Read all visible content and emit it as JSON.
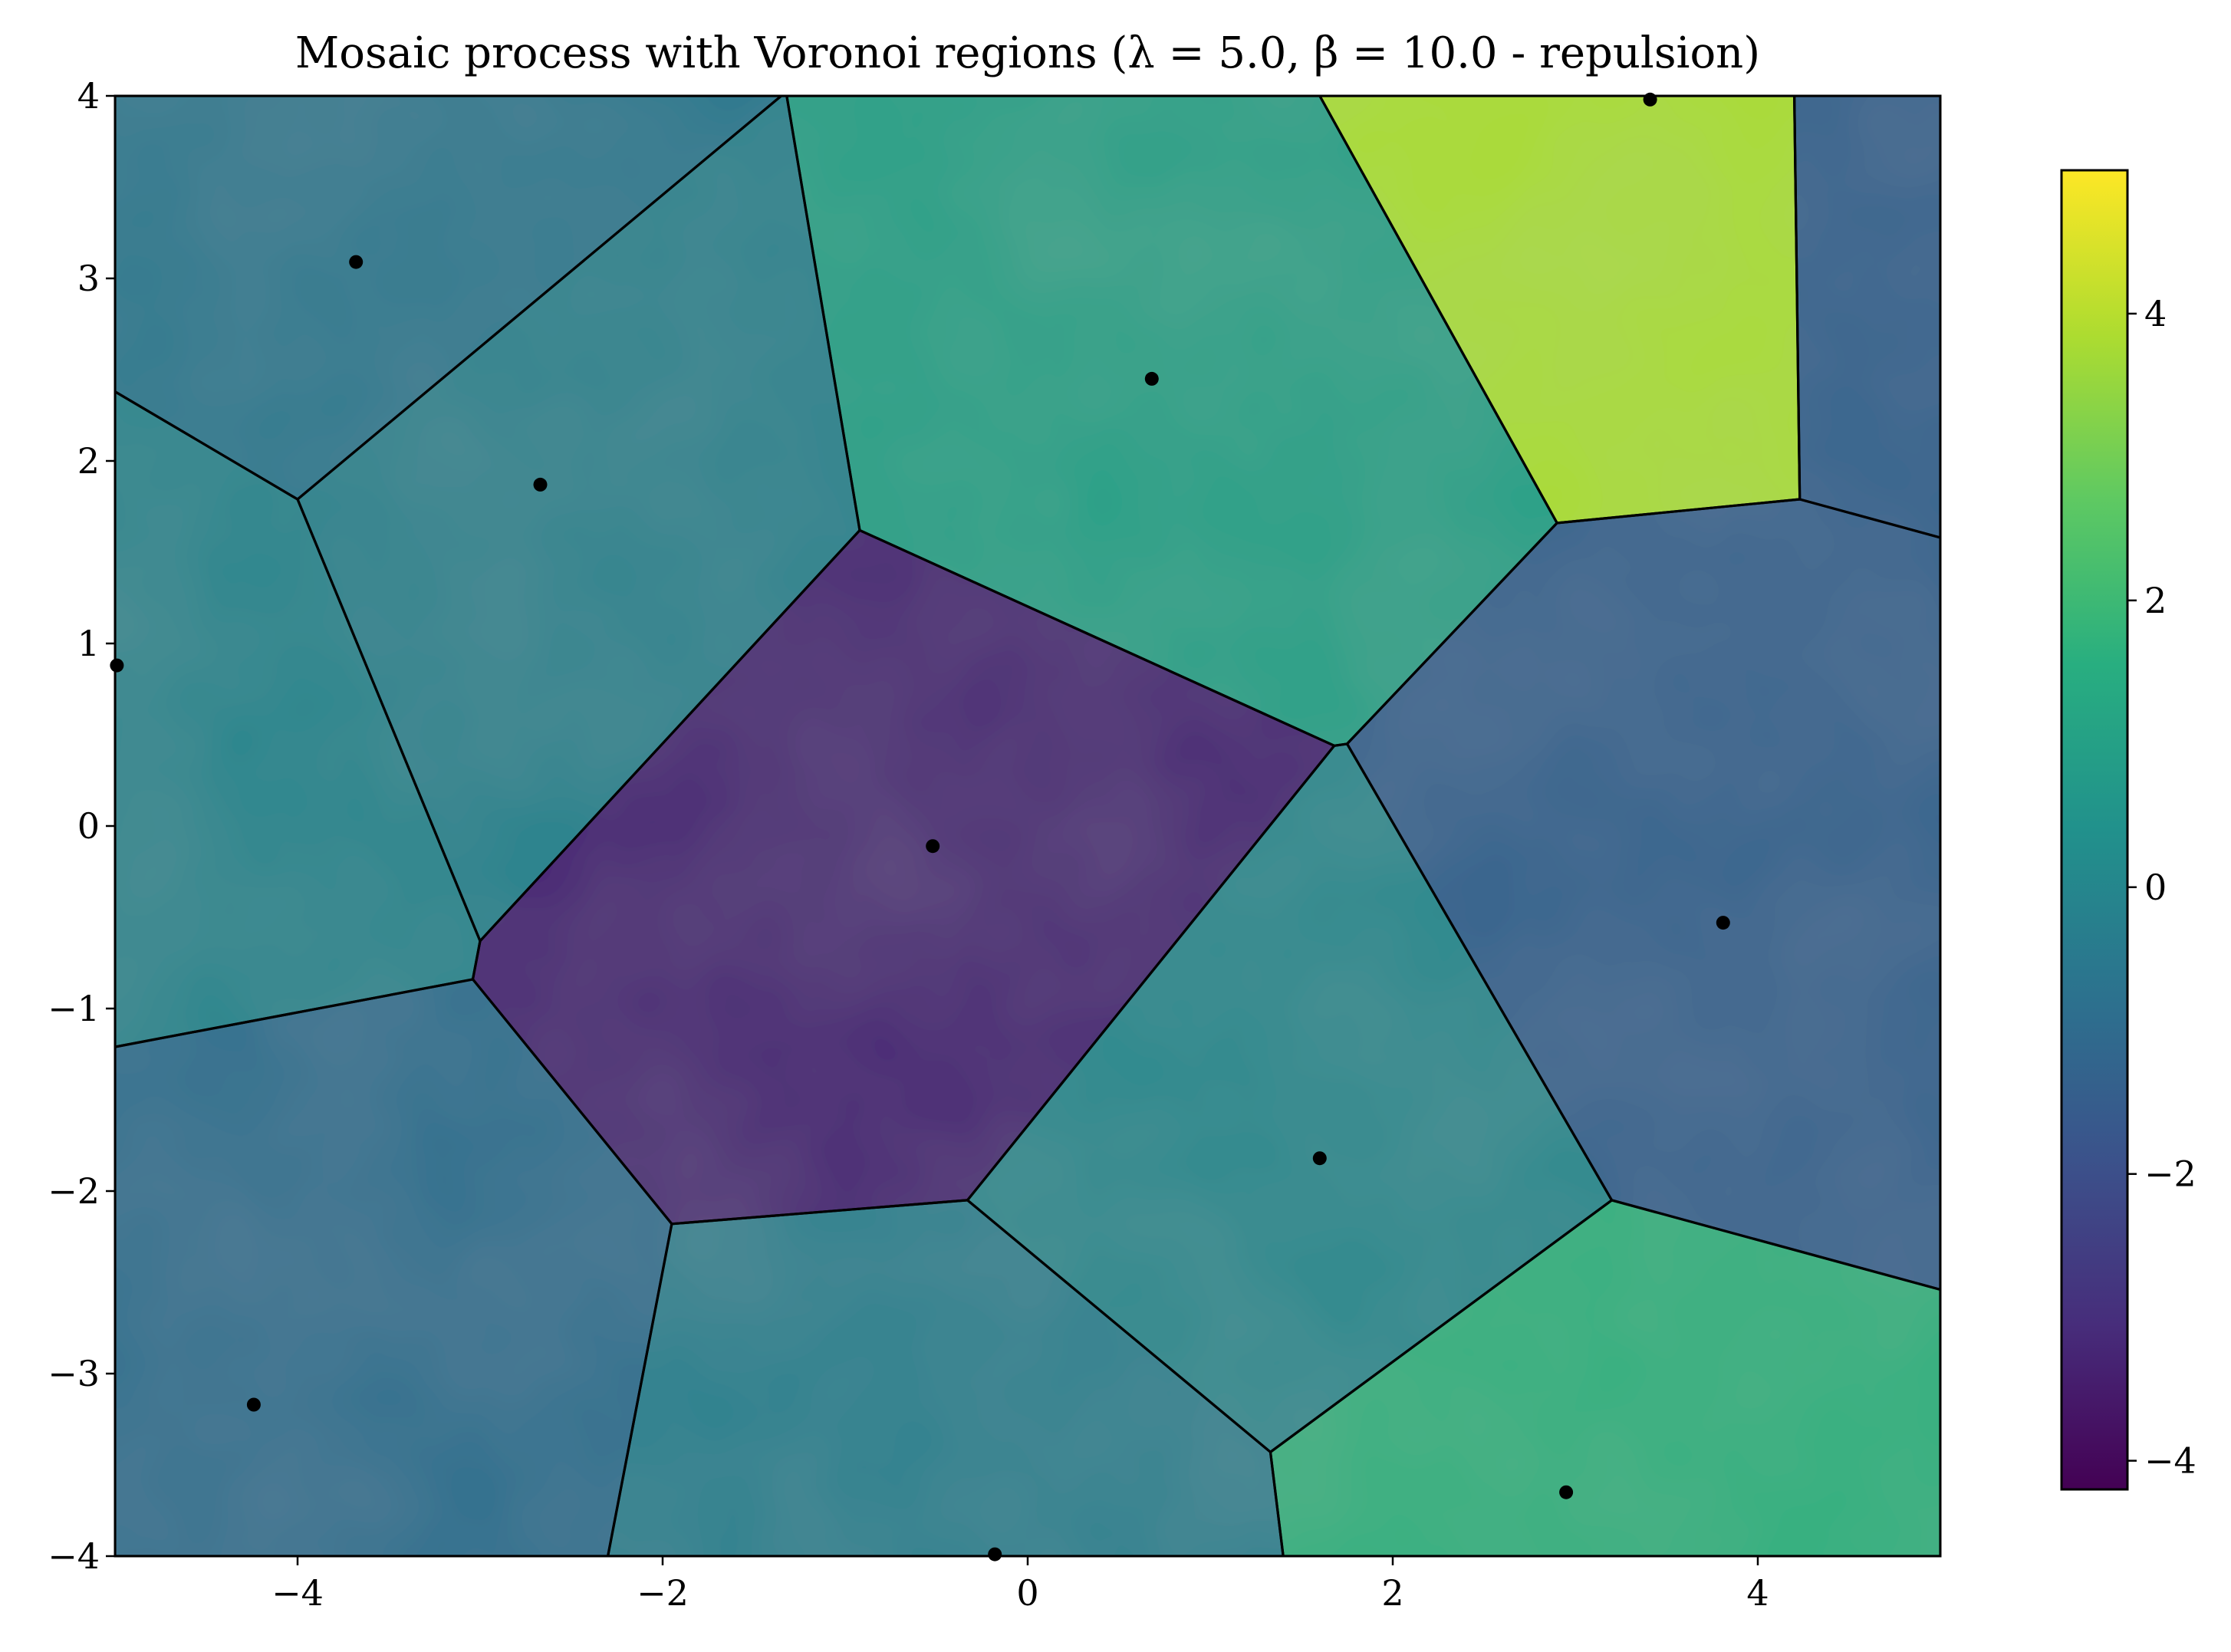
{
  "chart_data": {
    "type": "heatmap",
    "title": "Mosaic process with Voronoi regions (λ = 5.0, β = 10.0 - repulsion)",
    "xlabel": "",
    "ylabel": "",
    "xlim": [
      -5,
      5
    ],
    "ylim": [
      -4,
      4
    ],
    "x_ticks": [
      -4,
      -2,
      0,
      2,
      4
    ],
    "x_tick_labels": [
      "−4",
      "−2",
      "0",
      "2",
      "4"
    ],
    "y_ticks": [
      -4,
      -3,
      -2,
      -1,
      0,
      1,
      2,
      3,
      4
    ],
    "y_tick_labels": [
      "−4",
      "−3",
      "−2",
      "−1",
      "0",
      "1",
      "2",
      "3",
      "4"
    ],
    "grid": false,
    "colormap": "viridis",
    "colorbar": {
      "range": [
        -4.2,
        5.0
      ],
      "ticks": [
        -4,
        -2,
        0,
        2,
        4
      ],
      "tick_labels": [
        "−4",
        "−2",
        "0",
        "2",
        "4"
      ]
    },
    "points": [
      {
        "x": -3.68,
        "y": 3.09
      },
      {
        "x": -2.67,
        "y": 1.87
      },
      {
        "x": 0.68,
        "y": 2.45
      },
      {
        "x": 3.41,
        "y": 3.98
      },
      {
        "x": -4.99,
        "y": 0.88
      },
      {
        "x": -0.52,
        "y": -0.11
      },
      {
        "x": 3.81,
        "y": -0.53
      },
      {
        "x": 1.6,
        "y": -1.82
      },
      {
        "x": -4.24,
        "y": -3.17
      },
      {
        "x": 2.95,
        "y": -3.65
      },
      {
        "x": -0.18,
        "y": -3.99
      }
    ],
    "regions": [
      {
        "site": 0,
        "value": -0.5,
        "polygon": [
          [
            -5,
            4
          ],
          [
            -1.35,
            4
          ],
          [
            -4,
            1.79
          ],
          [
            -5,
            2.38
          ]
        ]
      },
      {
        "site": 1,
        "value": -0.1,
        "polygon": [
          [
            -1.35,
            4
          ],
          [
            -1.32,
            4
          ],
          [
            -0.92,
            1.62
          ],
          [
            -3,
            -0.63
          ],
          [
            -4,
            1.79
          ]
        ]
      },
      {
        "site": 2,
        "value": 1.0,
        "polygon": [
          [
            -1.32,
            4
          ],
          [
            1.6,
            4
          ],
          [
            2.9,
            1.66
          ],
          [
            1.75,
            0.45
          ],
          [
            1.68,
            0.44
          ],
          [
            -0.92,
            1.62
          ]
        ]
      },
      {
        "site": 3,
        "value": 3.8,
        "polygon": [
          [
            1.6,
            4
          ],
          [
            4.2,
            4
          ],
          [
            4.23,
            1.79
          ],
          [
            2.9,
            1.66
          ]
        ]
      },
      {
        "site": -1,
        "value": -1.3,
        "polygon": [
          [
            4.2,
            4
          ],
          [
            5,
            4
          ],
          [
            5,
            1.58
          ],
          [
            4.23,
            1.79
          ]
        ]
      },
      {
        "site": 4,
        "value": 0.0,
        "polygon": [
          [
            -5,
            2.38
          ],
          [
            -4,
            1.79
          ],
          [
            -3,
            -0.63
          ],
          [
            -3.04,
            -0.84
          ],
          [
            -5,
            -1.21
          ]
        ]
      },
      {
        "site": 5,
        "value": -3.3,
        "polygon": [
          [
            -0.92,
            1.62
          ],
          [
            1.68,
            0.44
          ],
          [
            -0.33,
            -2.05
          ],
          [
            -1.95,
            -2.18
          ],
          [
            -3.04,
            -0.84
          ],
          [
            -3,
            -0.63
          ]
        ]
      },
      {
        "site": 6,
        "value": -1.3,
        "polygon": [
          [
            2.9,
            1.66
          ],
          [
            4.23,
            1.79
          ],
          [
            5,
            1.58
          ],
          [
            5,
            -2.54
          ],
          [
            3.2,
            -2.05
          ],
          [
            1.75,
            0.45
          ]
        ]
      },
      {
        "site": 7,
        "value": 0.1,
        "polygon": [
          [
            1.68,
            0.44
          ],
          [
            1.75,
            0.45
          ],
          [
            3.2,
            -2.05
          ],
          [
            1.33,
            -3.43
          ],
          [
            -0.33,
            -2.05
          ]
        ]
      },
      {
        "site": 8,
        "value": -0.8,
        "polygon": [
          [
            -5,
            -1.21
          ],
          [
            -3.04,
            -0.84
          ],
          [
            -1.95,
            -2.18
          ],
          [
            -2.3,
            -4
          ],
          [
            -5,
            -4
          ]
        ]
      },
      {
        "site": 9,
        "value": 1.6,
        "polygon": [
          [
            3.2,
            -2.05
          ],
          [
            5,
            -2.54
          ],
          [
            5,
            -4
          ],
          [
            1.4,
            -4
          ],
          [
            1.33,
            -3.43
          ]
        ]
      },
      {
        "site": 10,
        "value": -0.2,
        "polygon": [
          [
            -1.95,
            -2.18
          ],
          [
            -0.33,
            -2.05
          ],
          [
            1.33,
            -3.43
          ],
          [
            1.4,
            -4
          ],
          [
            -2.3,
            -4
          ]
        ]
      }
    ]
  }
}
